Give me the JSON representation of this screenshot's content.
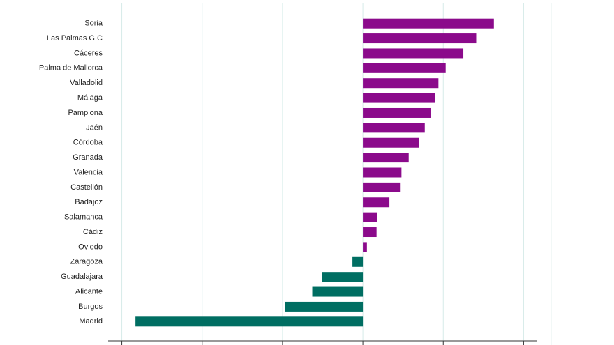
{
  "chart_data": {
    "type": "bar",
    "orientation": "horizontal",
    "categories": [
      "Soria",
      "Las Palmas G.C",
      "Cáceres",
      "Palma de Mallorca",
      "Valladolid",
      "Málaga",
      "Pamplona",
      "Jaén",
      "Córdoba",
      "Granada",
      "Valencia",
      "Castellón",
      "Badajoz",
      "Salamanca",
      "Cádiz",
      "Oviedo",
      "Zaragoza",
      "Guadalajara",
      "Alicante",
      "Burgos",
      "Madrid"
    ],
    "values": [
      1.63,
      1.41,
      1.25,
      1.03,
      0.94,
      0.9,
      0.85,
      0.77,
      0.7,
      0.57,
      0.48,
      0.47,
      0.33,
      0.18,
      0.17,
      0.05,
      -0.13,
      -0.51,
      -0.63,
      -0.97,
      -2.83
    ],
    "colors": [
      "#8b0a8b",
      "#8b0a8b",
      "#8b0a8b",
      "#8b0a8b",
      "#8b0a8b",
      "#8b0a8b",
      "#8b0a8b",
      "#8b0a8b",
      "#8b0a8b",
      "#8b0a8b",
      "#8b0a8b",
      "#8b0a8b",
      "#8b0a8b",
      "#8b0a8b",
      "#8b0a8b",
      "#8b0a8b",
      "#006e62",
      "#006e62",
      "#006e62",
      "#006e62",
      "#006e62"
    ],
    "xlim": [
      -3.17,
      2.17
    ],
    "xticks": [
      -3,
      -2,
      -1,
      0,
      1,
      2
    ],
    "grid": true
  }
}
